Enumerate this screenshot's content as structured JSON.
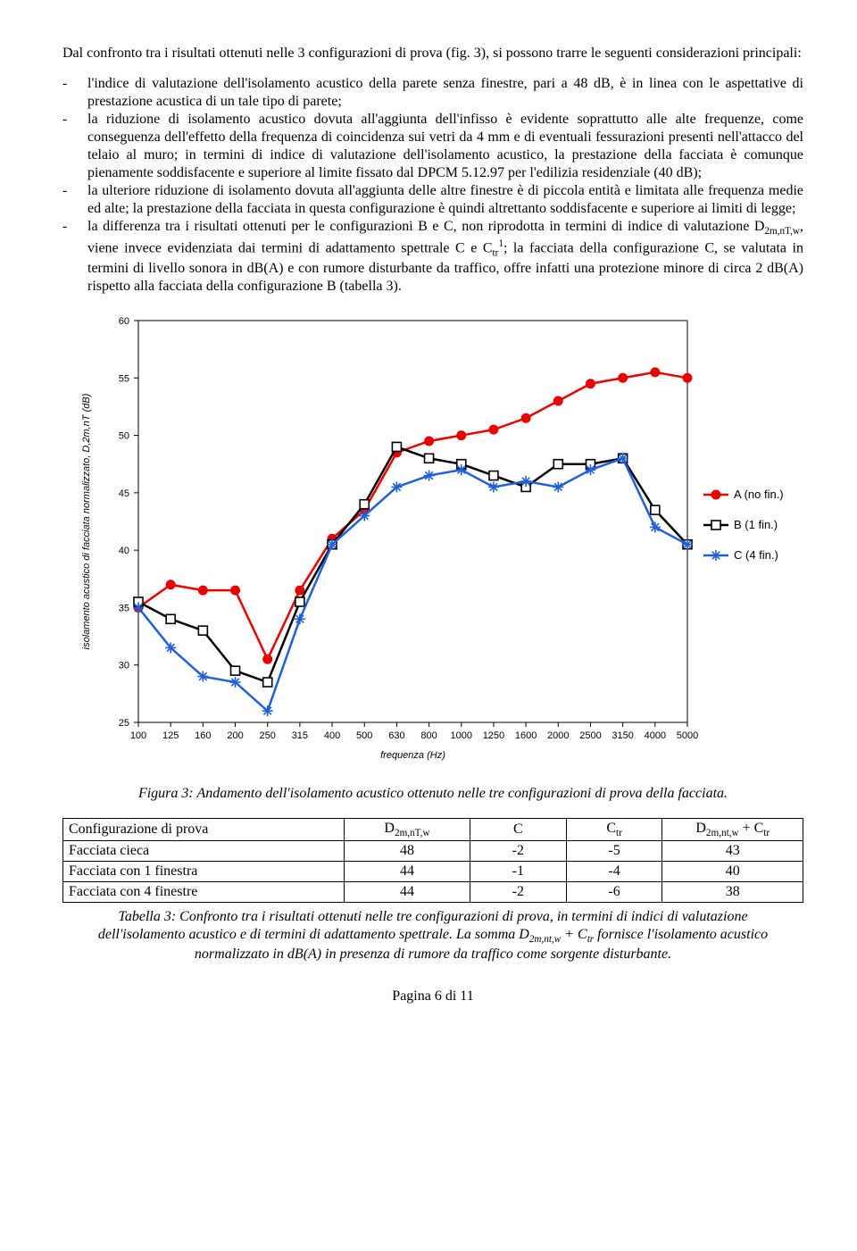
{
  "text": {
    "intro": "Dal confronto tra i risultati ottenuti nelle 3 configurazioni di prova (fig. 3), si possono trarre le seguenti considerazioni principali:",
    "b1": "l'indice di valutazione dell'isolamento acustico della parete senza finestre, pari a 48 dB, è in linea con le aspettative di prestazione acustica di un tale tipo di parete;",
    "b2": "la riduzione di isolamento acustico dovuta all'aggiunta dell'infisso è evidente soprattutto alle alte frequenze, come conseguenza dell'effetto della frequenza di coincidenza sui vetri da 4 mm e di eventuali fessurazioni presenti nell'attacco del telaio al muro; in termini di indice di valutazione dell'isolamento acustico, la prestazione della facciata è comunque pienamente soddisfacente e superiore al limite fissato dal DPCM 5.12.97 per l'edilizia residenziale (40 dB);",
    "b3": "la ulteriore riduzione di isolamento dovuta all'aggiunta delle altre finestre è di piccola entità e limitata alle frequenza medie ed alte; la prestazione della facciata in questa configurazione è quindi altrettanto soddisfacente e superiore ai limiti di legge;",
    "b4a": "la differenza tra i risultati ottenuti per le configurazioni B e C, non riprodotta in termini di indice di valutazione D",
    "b4_sub1": "2m,nT,w",
    "b4b": ", viene invece evidenziata dai termini di adattamento spettrale C e C",
    "b4_sub2": "tr",
    "b4_sup": "1",
    "b4c": "; la facciata della configurazione C, se valutata in termini di livello sonora in dB(A) e con rumore disturbante da traffico, offre infatti una protezione minore di circa 2 dB(A) rispetto alla facciata della configurazione B (tabella 3).",
    "fig_caption": "Figura 3: Andamento dell'isolamento acustico ottenuto nelle tre configurazioni di prova della facciata.",
    "tab_caption_a": "Tabella 3: Confronto tra i risultati ottenuti nelle tre configurazioni di prova, in termini di indici di valutazione dell'isolamento acustico e di termini di adattamento spettrale. La somma D",
    "tab_caption_sub1": "2m,nt,w",
    "tab_caption_b": " + C",
    "tab_caption_sub2": "tr",
    "tab_caption_c": " fornisce l'isolamento acustico normalizzato in dB(A) in presenza di rumore da traffico come sorgente disturbante.",
    "footer": "Pagina 6 di 11"
  },
  "chart": {
    "type": "line",
    "x_labels": [
      "100",
      "125",
      "160",
      "200",
      "250",
      "315",
      "400",
      "500",
      "630",
      "800",
      "1000",
      "1250",
      "1600",
      "2000",
      "2500",
      "3150",
      "4000",
      "5000"
    ],
    "x_title": "frequenza (Hz)",
    "y_title": "isolamento acustico di facciata normalizzato, D,2m,nT (dB)",
    "y_min": 25,
    "y_max": 60,
    "y_step": 5,
    "series": [
      {
        "name": "A (no fin.)",
        "color": "#e60000",
        "marker": "circle",
        "values": [
          35,
          37,
          36.5,
          36.5,
          30.5,
          36.5,
          41,
          43.5,
          48.5,
          49.5,
          50,
          50.5,
          51.5,
          53,
          54.5,
          55,
          55.5,
          55
        ]
      },
      {
        "name": "B (1 fin.)",
        "color": "#000000",
        "marker": "square",
        "values": [
          35.5,
          34,
          33,
          29.5,
          28.5,
          35.5,
          40.5,
          44,
          49,
          48,
          47.5,
          46.5,
          45.5,
          47.5,
          47.5,
          48,
          43.5,
          40.5
        ]
      },
      {
        "name": "C (4 fin.)",
        "color": "#1f5fd8",
        "marker": "star",
        "values": [
          35,
          31.5,
          29,
          28.5,
          26,
          34,
          40.5,
          43,
          45.5,
          46.5,
          47,
          45.5,
          46,
          45.5,
          47,
          48,
          42,
          40.5
        ]
      }
    ],
    "line_width": 2.5,
    "marker_size": 5,
    "axis_font_size": 11,
    "title_font_size": 11,
    "legend_font_size": 13,
    "plot_bg": "#ffffff",
    "axis_color": "#000000"
  },
  "table": {
    "header": [
      "Configurazione di prova",
      "D|2m,nT,w",
      "C",
      "C|tr",
      "D|2m,nt,w| + C|tr"
    ],
    "rows": [
      [
        "Facciata cieca",
        "48",
        "-2",
        "-5",
        "43"
      ],
      [
        "Facciata con 1 finestra",
        "44",
        "-1",
        "-4",
        "40"
      ],
      [
        "Facciata con 4 finestre",
        "44",
        "-2",
        "-6",
        "38"
      ]
    ],
    "col_align": [
      "left",
      "center",
      "center",
      "center",
      "center"
    ],
    "col_width_pct": [
      38,
      17,
      13,
      13,
      19
    ]
  }
}
